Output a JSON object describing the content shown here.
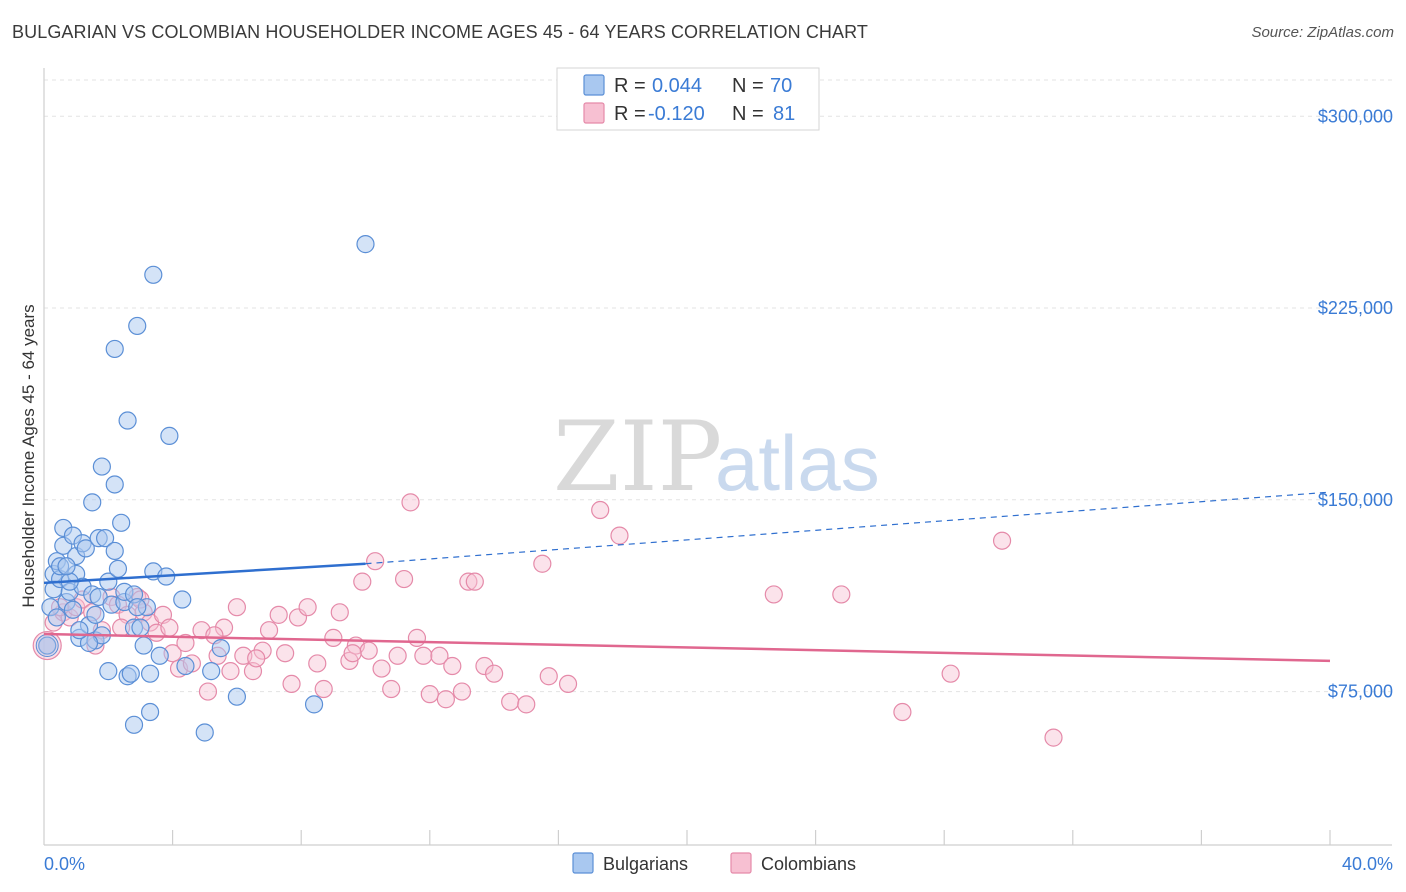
{
  "title": "BULGARIAN VS COLOMBIAN HOUSEHOLDER INCOME AGES 45 - 64 YEARS CORRELATION CHART",
  "source": "Source: ZipAtlas.com",
  "watermark": {
    "zip": "ZIP",
    "atlas": "atlas"
  },
  "legend": {
    "r_label": "R =",
    "n_label": "N =",
    "series": [
      {
        "r": "0.044",
        "n": "70"
      },
      {
        "r": "-0.120",
        "n": "81"
      }
    ]
  },
  "colors": {
    "bulgarians_fill": "#a9c8f0",
    "bulgarians_stroke": "#5b8fd6",
    "bulgarians_line": "#2f6fcf",
    "colombians_fill": "#f7c0d2",
    "colombians_stroke": "#e58aa9",
    "colombians_line": "#e0678f",
    "tick_text": "#3a7bd5"
  },
  "chart_data": {
    "type": "scatter",
    "title": "BULGARIAN VS COLOMBIAN HOUSEHOLDER INCOME AGES 45 - 64 YEARS CORRELATION CHART",
    "xlabel": "",
    "ylabel": "Householder Income Ages 45 - 64 years",
    "xlim": [
      0,
      40
    ],
    "ylim": [
      15000,
      322000
    ],
    "x_tick_labels": [
      "0.0%",
      "40.0%"
    ],
    "y_ticks": [
      75000,
      150000,
      225000,
      300000
    ],
    "y_tick_labels": [
      "$75,000",
      "$150,000",
      "$225,000",
      "$300,000"
    ],
    "grid": true,
    "legend_position": "bottom-center",
    "series": [
      {
        "name": "Bulgarians",
        "r": 0.044,
        "n": 70,
        "trend": {
          "x0": 0.0,
          "y0": 117500,
          "x1": 10.0,
          "y1": 125000,
          "dashed_to_x": 40.0,
          "dashed_to_y": 153000
        },
        "points": [
          [
            0.1,
            93000
          ],
          [
            0.2,
            108000
          ],
          [
            0.3,
            115000
          ],
          [
            0.3,
            121000
          ],
          [
            0.4,
            126000
          ],
          [
            0.5,
            119000
          ],
          [
            0.5,
            124000
          ],
          [
            0.6,
            132000
          ],
          [
            0.6,
            139000
          ],
          [
            0.7,
            110000
          ],
          [
            0.8,
            114000
          ],
          [
            0.9,
            107000
          ],
          [
            0.9,
            136000
          ],
          [
            1.0,
            121000
          ],
          [
            1.0,
            128000
          ],
          [
            1.1,
            96000
          ],
          [
            1.2,
            116000
          ],
          [
            1.2,
            133000
          ],
          [
            1.3,
            131000
          ],
          [
            1.4,
            101000
          ],
          [
            1.5,
            113000
          ],
          [
            1.5,
            149000
          ],
          [
            1.6,
            95000
          ],
          [
            1.7,
            112000
          ],
          [
            1.7,
            135000
          ],
          [
            1.8,
            163000
          ],
          [
            1.8,
            97000
          ],
          [
            1.9,
            135000
          ],
          [
            2.0,
            118000
          ],
          [
            2.0,
            83000
          ],
          [
            2.1,
            109000
          ],
          [
            2.2,
            156000
          ],
          [
            2.2,
            130000
          ],
          [
            2.3,
            123000
          ],
          [
            2.4,
            141000
          ],
          [
            2.5,
            110000
          ],
          [
            2.5,
            114000
          ],
          [
            2.6,
            181000
          ],
          [
            2.6,
            81000
          ],
          [
            2.7,
            82000
          ],
          [
            2.8,
            113000
          ],
          [
            2.8,
            100000
          ],
          [
            2.8,
            62000
          ],
          [
            2.2,
            209000
          ],
          [
            3.0,
            100000
          ],
          [
            3.1,
            93000
          ],
          [
            3.2,
            108000
          ],
          [
            3.3,
            82000
          ],
          [
            3.3,
            67000
          ],
          [
            2.9,
            218000
          ],
          [
            3.4,
            238000
          ],
          [
            3.4,
            122000
          ],
          [
            3.8,
            120000
          ],
          [
            3.9,
            175000
          ],
          [
            4.3,
            111000
          ],
          [
            4.4,
            85000
          ],
          [
            3.6,
            89000
          ],
          [
            5.0,
            59000
          ],
          [
            5.2,
            83000
          ],
          [
            5.5,
            92000
          ],
          [
            6.0,
            73000
          ],
          [
            8.4,
            70000
          ],
          [
            10.0,
            250000
          ],
          [
            1.6,
            105000
          ],
          [
            0.8,
            118000
          ],
          [
            1.4,
            94000
          ],
          [
            2.9,
            108000
          ],
          [
            1.1,
            99000
          ],
          [
            0.4,
            104000
          ],
          [
            0.7,
            124000
          ]
        ]
      },
      {
        "name": "Colombians",
        "r": -0.12,
        "n": 81,
        "trend": {
          "x0": 0.0,
          "y0": 97500,
          "x1": 40.0,
          "y1": 87000
        },
        "points": [
          [
            0.1,
            93000
          ],
          [
            0.3,
            102000
          ],
          [
            0.6,
            106000
          ],
          [
            0.8,
            104000
          ],
          [
            1.0,
            108000
          ],
          [
            1.2,
            111000
          ],
          [
            1.5,
            106000
          ],
          [
            1.8,
            99000
          ],
          [
            2.1,
            112000
          ],
          [
            2.3,
            109000
          ],
          [
            2.6,
            105000
          ],
          [
            2.9,
            112000
          ],
          [
            3.1,
            106000
          ],
          [
            3.3,
            102000
          ],
          [
            3.5,
            98000
          ],
          [
            3.7,
            105000
          ],
          [
            3.9,
            100000
          ],
          [
            4.0,
            90000
          ],
          [
            4.2,
            84000
          ],
          [
            4.4,
            94000
          ],
          [
            4.6,
            86000
          ],
          [
            4.9,
            99000
          ],
          [
            5.1,
            75000
          ],
          [
            5.4,
            89000
          ],
          [
            5.6,
            100000
          ],
          [
            5.8,
            83000
          ],
          [
            6.0,
            108000
          ],
          [
            6.2,
            89000
          ],
          [
            6.5,
            83000
          ],
          [
            6.8,
            91000
          ],
          [
            7.0,
            99000
          ],
          [
            7.3,
            105000
          ],
          [
            7.5,
            90000
          ],
          [
            7.7,
            78000
          ],
          [
            7.9,
            104000
          ],
          [
            8.2,
            108000
          ],
          [
            8.5,
            86000
          ],
          [
            8.7,
            76000
          ],
          [
            9.0,
            96000
          ],
          [
            9.2,
            106000
          ],
          [
            9.5,
            87000
          ],
          [
            9.7,
            93000
          ],
          [
            9.9,
            118000
          ],
          [
            10.1,
            91000
          ],
          [
            10.3,
            126000
          ],
          [
            10.5,
            84000
          ],
          [
            10.8,
            76000
          ],
          [
            11.0,
            89000
          ],
          [
            11.2,
            119000
          ],
          [
            11.4,
            149000
          ],
          [
            11.6,
            96000
          ],
          [
            11.8,
            89000
          ],
          [
            12.0,
            74000
          ],
          [
            12.3,
            89000
          ],
          [
            12.5,
            72000
          ],
          [
            12.7,
            85000
          ],
          [
            13.0,
            75000
          ],
          [
            13.2,
            118000
          ],
          [
            13.4,
            118000
          ],
          [
            13.7,
            85000
          ],
          [
            14.0,
            82000
          ],
          [
            14.5,
            71000
          ],
          [
            15.0,
            70000
          ],
          [
            15.5,
            125000
          ],
          [
            15.7,
            81000
          ],
          [
            16.3,
            78000
          ],
          [
            17.3,
            146000
          ],
          [
            17.9,
            136000
          ],
          [
            22.7,
            113000
          ],
          [
            24.8,
            113000
          ],
          [
            26.7,
            67000
          ],
          [
            28.2,
            82000
          ],
          [
            29.8,
            134000
          ],
          [
            31.4,
            57000
          ],
          [
            0.5,
            108000
          ],
          [
            1.6,
            93000
          ],
          [
            2.4,
            100000
          ],
          [
            3.0,
            111000
          ],
          [
            5.3,
            97000
          ],
          [
            6.6,
            88000
          ],
          [
            9.6,
            90000
          ]
        ]
      }
    ]
  },
  "bottom_legend": [
    "Bulgarians",
    "Colombians"
  ]
}
